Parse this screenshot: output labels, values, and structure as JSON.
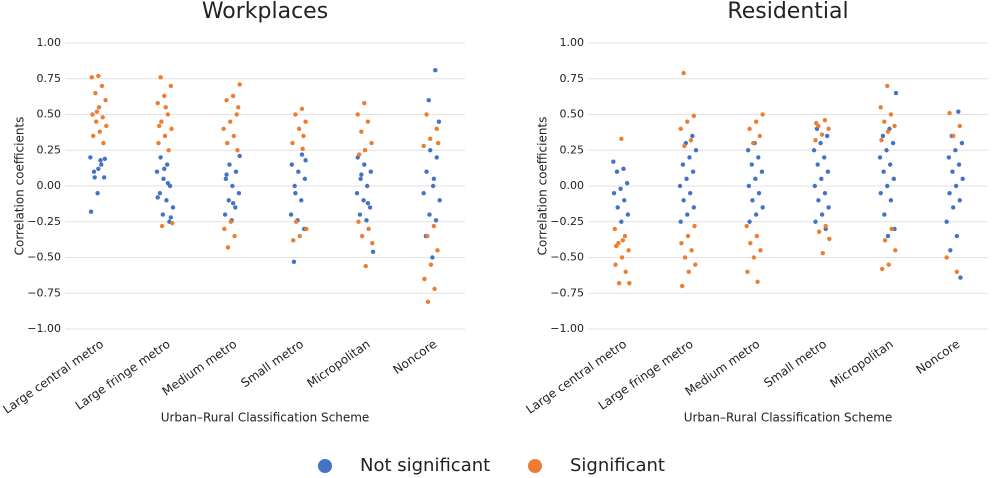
{
  "chart_data": [
    {
      "type": "strip",
      "title": "Workplaces",
      "xlabel": "Urban–Rural Classification Scheme",
      "ylabel": "Correlation coefficients",
      "categories": [
        "Large central metro",
        "Large fringe metro",
        "Medium metro",
        "Small metro",
        "Micropolitan",
        "Noncore"
      ],
      "ylim": [
        -1,
        1
      ],
      "yticks": [
        {
          "value": 1,
          "label": "1.00"
        },
        {
          "value": 0.75,
          "label": "0.75"
        },
        {
          "value": 0.5,
          "label": "0.50"
        },
        {
          "value": 0.25,
          "label": "0.25"
        },
        {
          "value": 0,
          "label": "0.00"
        },
        {
          "value": -0.25,
          "label": "−0.25"
        },
        {
          "value": -0.5,
          "label": "−0.50"
        },
        {
          "value": -0.75,
          "label": "−0.75"
        },
        {
          "value": -1,
          "label": "−1.00"
        }
      ],
      "grid": true,
      "series": [
        {
          "name": "Not significant",
          "color": "#4472c4",
          "values": [
            [
              0.2,
              0.18,
              0.1,
              0.06,
              -0.05,
              -0.18,
              0.15,
              0.06,
              0.19,
              0.12
            ],
            [
              -0.25,
              -0.2,
              -0.15,
              -0.1,
              -0.05,
              0,
              0.05,
              0.1,
              0.15,
              0.2,
              -0.22,
              0.12,
              -0.08,
              0.02
            ],
            [
              -0.24,
              -0.2,
              -0.15,
              -0.1,
              -0.05,
              0,
              0.05,
              0.1,
              0.15,
              0.21,
              -0.12,
              0.08
            ],
            [
              -0.53,
              -0.3,
              -0.24,
              -0.2,
              -0.1,
              0,
              0.05,
              0.1,
              0.15,
              0.22,
              -0.05,
              0.18
            ],
            [
              -0.46,
              -0.24,
              -0.2,
              -0.15,
              -0.1,
              -0.05,
              0,
              0.05,
              0.1,
              0.15,
              0.2,
              -0.12,
              0.08
            ],
            [
              0.81,
              0.6,
              0.45,
              -0.5,
              -0.35,
              -0.24,
              -0.2,
              -0.1,
              0,
              0.1,
              0.2,
              0.25,
              -0.05,
              0.05
            ]
          ]
        },
        {
          "name": "Significant",
          "color": "#ed7d31",
          "values": [
            [
              0.77,
              0.76,
              0.7,
              0.65,
              0.6,
              0.55,
              0.5,
              0.48,
              0.45,
              0.42,
              0.38,
              0.35,
              0.3,
              0.52
            ],
            [
              0.76,
              0.7,
              0.63,
              0.58,
              0.5,
              0.45,
              0.4,
              0.35,
              0.3,
              0.25,
              -0.28,
              -0.26,
              0.55,
              0.42
            ],
            [
              0.71,
              0.63,
              0.6,
              0.5,
              0.45,
              0.4,
              0.35,
              0.3,
              0.25,
              -0.25,
              -0.3,
              -0.35,
              -0.43,
              0.55
            ],
            [
              0.54,
              0.5,
              0.45,
              0.4,
              0.3,
              0.26,
              -0.25,
              -0.3,
              -0.35,
              -0.38,
              0.35
            ],
            [
              0.58,
              0.5,
              0.45,
              0.38,
              0.3,
              0.25,
              -0.25,
              -0.3,
              -0.35,
              -0.4,
              -0.56,
              0.22
            ],
            [
              0.5,
              0.4,
              0.33,
              0.28,
              -0.28,
              -0.35,
              -0.45,
              -0.55,
              -0.65,
              -0.72,
              -0.81,
              0.3
            ]
          ]
        }
      ]
    },
    {
      "type": "strip",
      "title": "Residential",
      "xlabel": "Urban–Rural Classification Scheme",
      "ylabel": "Correlation coefficients",
      "categories": [
        "Large central metro",
        "Large fringe metro",
        "Medium metro",
        "Small metro",
        "Micropolitan",
        "Noncore"
      ],
      "ylim": [
        -1,
        1
      ],
      "yticks": [
        {
          "value": 1,
          "label": "1.00"
        },
        {
          "value": 0.75,
          "label": "0.75"
        },
        {
          "value": 0.5,
          "label": "0.50"
        },
        {
          "value": 0.25,
          "label": "0.25"
        },
        {
          "value": 0,
          "label": "0.00"
        },
        {
          "value": -0.25,
          "label": "−0.25"
        },
        {
          "value": -0.5,
          "label": "−0.50"
        },
        {
          "value": -0.75,
          "label": "−0.75"
        },
        {
          "value": -1,
          "label": "−1.00"
        }
      ],
      "grid": true,
      "series": [
        {
          "name": "Not significant",
          "color": "#4472c4",
          "values": [
            [
              0.17,
              0.12,
              0.1,
              0.02,
              -0.02,
              -0.05,
              -0.1,
              -0.15,
              -0.2,
              -0.25
            ],
            [
              0.35,
              0.3,
              0.25,
              0.2,
              0.15,
              0.1,
              0.05,
              0,
              -0.05,
              -0.1,
              -0.15,
              -0.2,
              -0.25
            ],
            [
              0.3,
              0.25,
              0.2,
              0.15,
              0.1,
              0.05,
              0,
              -0.05,
              -0.1,
              -0.15,
              -0.2,
              -0.25
            ],
            [
              0.4,
              0.35,
              0.3,
              0.25,
              0.2,
              0.15,
              0.1,
              0.05,
              0,
              -0.05,
              -0.1,
              -0.15,
              -0.2,
              -0.25,
              -0.3
            ],
            [
              0.65,
              0.4,
              0.35,
              0.3,
              0.25,
              0.2,
              0.15,
              0.1,
              0.05,
              0,
              -0.05,
              -0.1,
              -0.2,
              -0.3,
              -0.35
            ],
            [
              0.52,
              0.35,
              0.3,
              0.25,
              0.2,
              0.15,
              0.1,
              0.05,
              0,
              -0.05,
              -0.1,
              -0.15,
              -0.25,
              -0.35,
              -0.45,
              -0.64
            ]
          ]
        },
        {
          "name": "Significant",
          "color": "#ed7d31",
          "values": [
            [
              0.33,
              -0.3,
              -0.35,
              -0.4,
              -0.45,
              -0.5,
              -0.55,
              -0.6,
              -0.68,
              -0.68,
              -0.38,
              -0.42
            ],
            [
              0.79,
              0.49,
              0.45,
              0.4,
              0.32,
              0.28,
              -0.28,
              -0.35,
              -0.4,
              -0.45,
              -0.5,
              -0.55,
              -0.6,
              -0.7
            ],
            [
              0.5,
              0.45,
              0.4,
              0.35,
              0.3,
              -0.28,
              -0.35,
              -0.4,
              -0.45,
              -0.5,
              -0.6,
              -0.67
            ],
            [
              0.46,
              0.42,
              0.4,
              0.36,
              0.32,
              -0.28,
              -0.32,
              -0.37,
              -0.47,
              0.44
            ],
            [
              0.7,
              0.55,
              0.5,
              0.45,
              0.42,
              0.38,
              0.32,
              -0.3,
              -0.38,
              -0.45,
              -0.55,
              -0.58
            ],
            [
              0.51,
              0.42,
              0.35,
              -0.5,
              -0.6
            ]
          ]
        }
      ]
    }
  ]
}
